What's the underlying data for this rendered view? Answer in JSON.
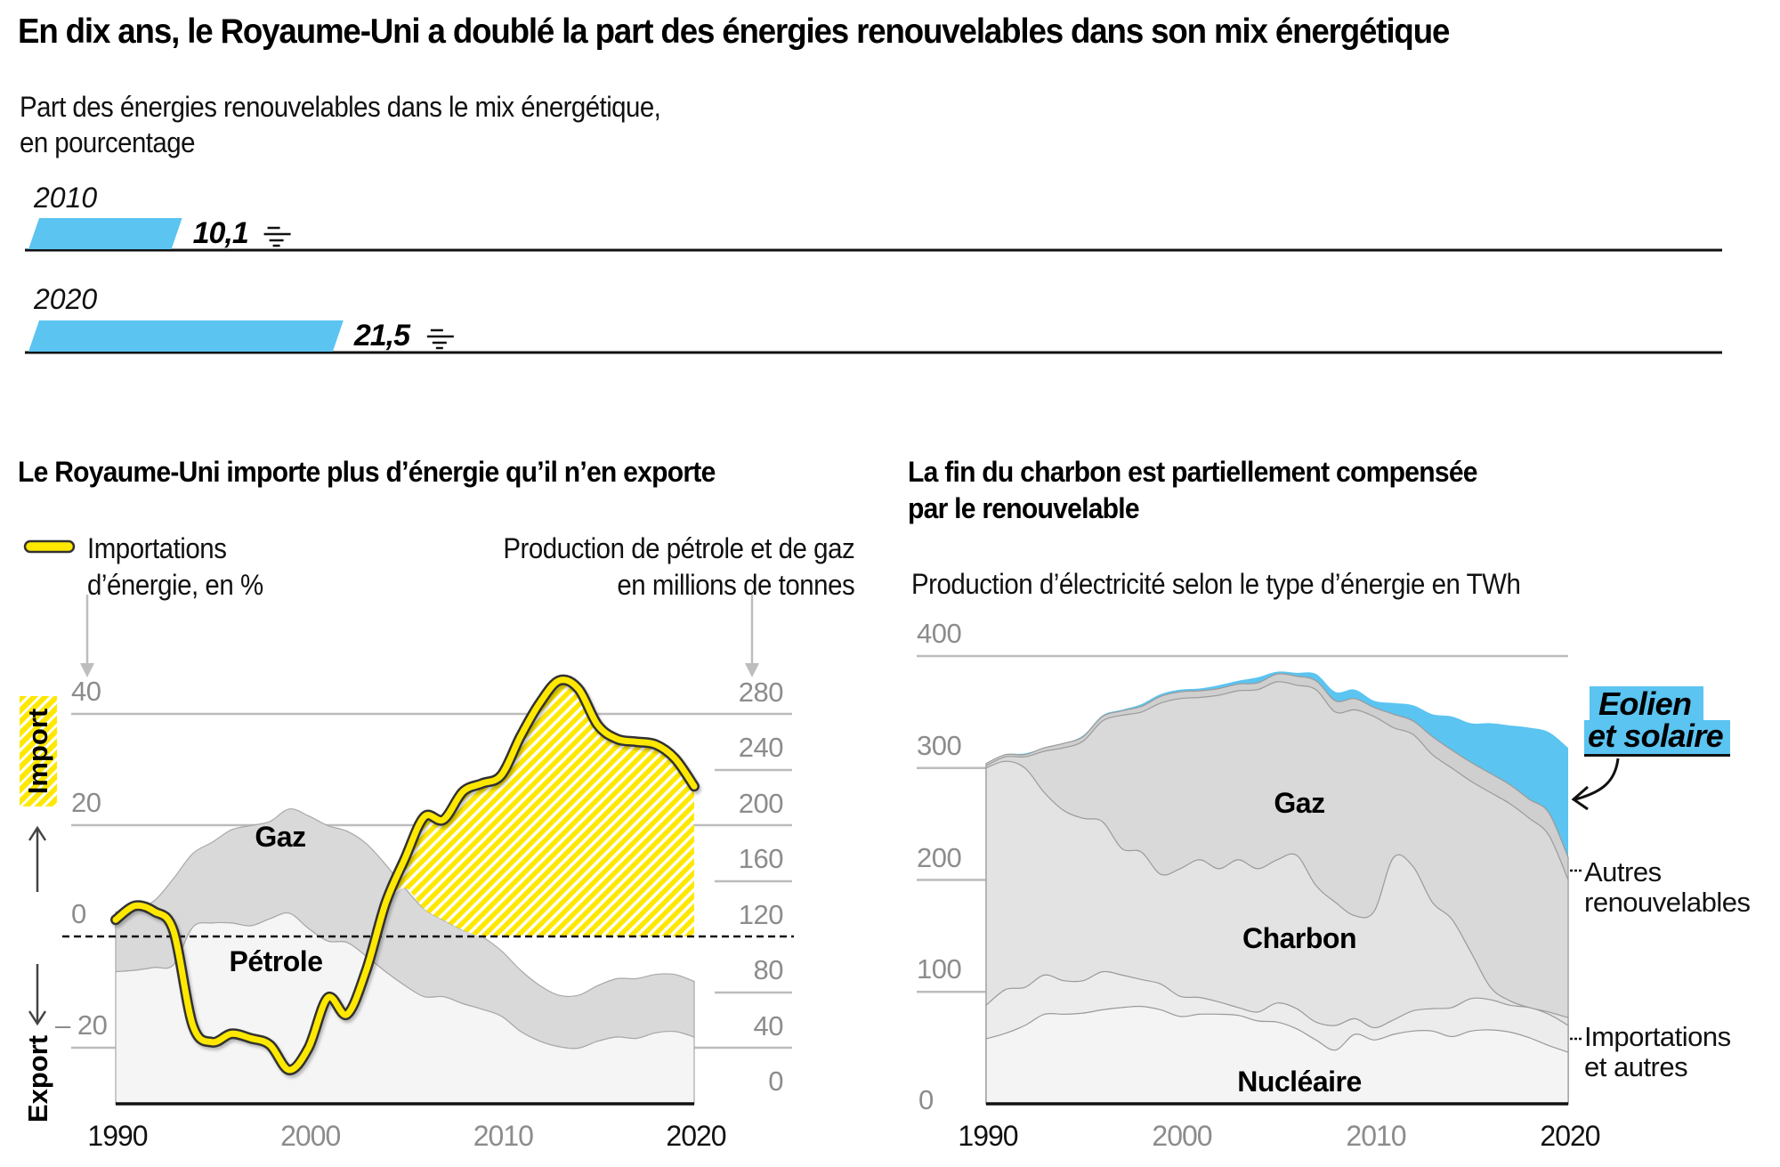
{
  "title": "En dix ans, le Royaume-Uni a doublé la part des énergies renouvelables dans son mix énergétique",
  "colors": {
    "renewable_blue": "#5bc4f1",
    "import_yellow": "#ffe800",
    "gas_grey": "#d9d9d9",
    "oil_grey": "#f5f5f5",
    "coal_grey": "#e3e3e3",
    "other_renew_grey": "#cfcfcf",
    "imports_grey": "#ececec",
    "nuclear_grey": "#f4f4f4",
    "grid_grey": "#bcbcbc",
    "tick_grey": "#8c8c8c"
  },
  "chart_data": [
    {
      "type": "bar",
      "orientation": "horizontal",
      "title": "Part des énergies renouvelables dans le mix énergétique, en pourcentage",
      "subtitle_lines": [
        "Part des énergies renouvelables dans le mix énergétique,",
        "en pourcentage"
      ],
      "categories": [
        "2010",
        "2020"
      ],
      "values": [
        10.1,
        21.5
      ],
      "value_labels": [
        "10,1",
        "21,5"
      ],
      "xlim": [
        0,
        100
      ]
    },
    {
      "type": "area",
      "title": "Le Royaume-Uni importe plus d’énergie qu’il n’en exporte",
      "legend": {
        "line_label_lines": [
          "Importations",
          "d’énergie, en %"
        ],
        "right_axis_label_lines": [
          "Production de pétrole et de gaz",
          "en millions de tonnes"
        ]
      },
      "side_labels": {
        "import": "Import",
        "export": "Export"
      },
      "x": [
        1990,
        1991,
        1992,
        1993,
        1994,
        1995,
        1996,
        1997,
        1998,
        1999,
        2000,
        2001,
        2002,
        2003,
        2004,
        2005,
        2006,
        2007,
        2008,
        2009,
        2010,
        2011,
        2012,
        2013,
        2014,
        2015,
        2016,
        2017,
        2018,
        2019,
        2020
      ],
      "x_ticks": [
        "1990",
        "2000",
        "2010",
        "2020"
      ],
      "xlim": [
        1990,
        2020
      ],
      "left_axis": {
        "label": "Importations d’énergie, en %",
        "ylim": [
          -26,
          46
        ],
        "ticks": [
          "40",
          "20",
          "0",
          "– 20"
        ],
        "tick_values": [
          40,
          20,
          0,
          -20
        ]
      },
      "right_axis": {
        "label": "Production de pétrole et de gaz en millions de tonnes",
        "ylim": [
          0,
          300
        ],
        "ticks": [
          "280",
          "240",
          "200",
          "160",
          "120",
          "80",
          "40",
          "0"
        ],
        "tick_values": [
          280,
          240,
          200,
          160,
          120,
          80,
          40,
          0
        ]
      },
      "series": [
        {
          "name": "Pétrole",
          "axis": "right",
          "stack": true,
          "values": [
            95,
            96,
            98,
            100,
            127,
            130,
            130,
            128,
            133,
            137,
            126,
            117,
            116,
            106,
            95,
            85,
            77,
            77,
            72,
            68,
            63,
            52,
            45,
            41,
            40,
            45,
            48,
            47,
            51,
            52,
            48
          ]
        },
        {
          "name": "Gaz",
          "axis": "right",
          "stack": true,
          "cumulative_top": true,
          "values": [
            138,
            140,
            146,
            162,
            180,
            188,
            197,
            200,
            203,
            212,
            207,
            200,
            196,
            187,
            172,
            155,
            140,
            132,
            125,
            120,
            110,
            96,
            85,
            78,
            78,
            85,
            90,
            90,
            93,
            93,
            88
          ]
        },
        {
          "name": "Importations d’énergie, en %",
          "axis": "left",
          "kind": "line",
          "values": [
            3,
            5.5,
            4.5,
            1,
            -16,
            -19,
            -17.5,
            -18.3,
            -19.5,
            -24,
            -20,
            -11,
            -14,
            -6,
            6,
            14,
            21.5,
            21,
            26,
            27.5,
            29,
            36,
            42,
            46,
            44.5,
            38,
            35.5,
            35,
            34.5,
            32,
            27
          ]
        }
      ],
      "area_labels": {
        "gas": "Gaz",
        "oil": "Pétrole"
      }
    },
    {
      "type": "area",
      "stacked": true,
      "title_lines": [
        "La fin du charbon est partiellement compensée",
        "par le renouvelable"
      ],
      "subtitle": "Production d’électricité selon le type d’énergie en TWh",
      "x": [
        1990,
        1991,
        1992,
        1993,
        1994,
        1995,
        1996,
        1997,
        1998,
        1999,
        2000,
        2001,
        2002,
        2003,
        2004,
        2005,
        2006,
        2007,
        2008,
        2009,
        2010,
        2011,
        2012,
        2013,
        2014,
        2015,
        2016,
        2017,
        2018,
        2019,
        2020
      ],
      "x_ticks": [
        "1990",
        "2000",
        "2010",
        "2020"
      ],
      "xlim": [
        1990,
        2020
      ],
      "ylim": [
        0,
        400
      ],
      "y_ticks": [
        "400",
        "300",
        "200",
        "100",
        "0"
      ],
      "y_tick_values": [
        400,
        300,
        200,
        100,
        0
      ],
      "grid": true,
      "series_cumulative_tops": [
        {
          "name": "Nucléaire",
          "values": [
            58,
            63,
            70,
            80,
            80,
            81,
            84,
            86,
            87,
            84,
            78,
            80,
            80,
            79,
            74,
            73,
            67,
            57,
            48,
            62,
            57,
            62,
            65,
            65,
            60,
            65,
            66,
            64,
            59,
            52,
            46
          ]
        },
        {
          "name": "Importations et autres",
          "values": [
            88,
            102,
            104,
            115,
            110,
            110,
            118,
            115,
            111,
            107,
            96,
            95,
            91,
            86,
            82,
            90,
            85,
            73,
            70,
            76,
            68,
            75,
            83,
            85,
            86,
            94,
            93,
            88,
            86,
            80,
            70
          ]
        },
        {
          "name": "Charbon",
          "values": [
            300,
            306,
            300,
            278,
            262,
            255,
            252,
            228,
            225,
            205,
            210,
            218,
            210,
            218,
            210,
            218,
            222,
            195,
            180,
            168,
            172,
            220,
            212,
            180,
            165,
            135,
            104,
            92,
            86,
            82,
            77
          ]
        },
        {
          "name": "Gaz",
          "values": [
            302,
            310,
            310,
            315,
            318,
            324,
            342,
            347,
            350,
            358,
            362,
            363,
            365,
            369,
            370,
            377,
            374,
            370,
            350,
            352,
            346,
            336,
            330,
            312,
            300,
            288,
            278,
            268,
            255,
            240,
            200
          ]
        },
        {
          "name": "Autres renouvelables",
          "values": [
            304,
            312,
            312,
            318,
            322,
            328,
            346,
            351,
            355,
            364,
            368,
            369,
            371,
            375,
            376,
            384,
            382,
            378,
            360,
            362,
            354,
            348,
            342,
            328,
            316,
            305,
            295,
            285,
            272,
            260,
            220
          ]
        },
        {
          "name": "Eolien et solaire",
          "values": [
            304,
            312,
            313,
            318,
            322,
            329,
            347,
            352,
            357,
            366,
            370,
            371,
            374,
            378,
            381,
            386,
            385,
            384,
            368,
            370,
            360,
            358,
            356,
            348,
            346,
            340,
            340,
            338,
            336,
            332,
            318
          ]
        }
      ],
      "area_labels": {
        "gas": "Gaz",
        "coal": "Charbon",
        "nuclear": "Nucléaire"
      },
      "annotations": {
        "wind_solar_lines": [
          "Eolien",
          "et solaire"
        ],
        "other_renew_lines": [
          "Autres",
          "renouvelables"
        ],
        "imports_lines": [
          "Importations",
          "et autres"
        ]
      }
    }
  ]
}
